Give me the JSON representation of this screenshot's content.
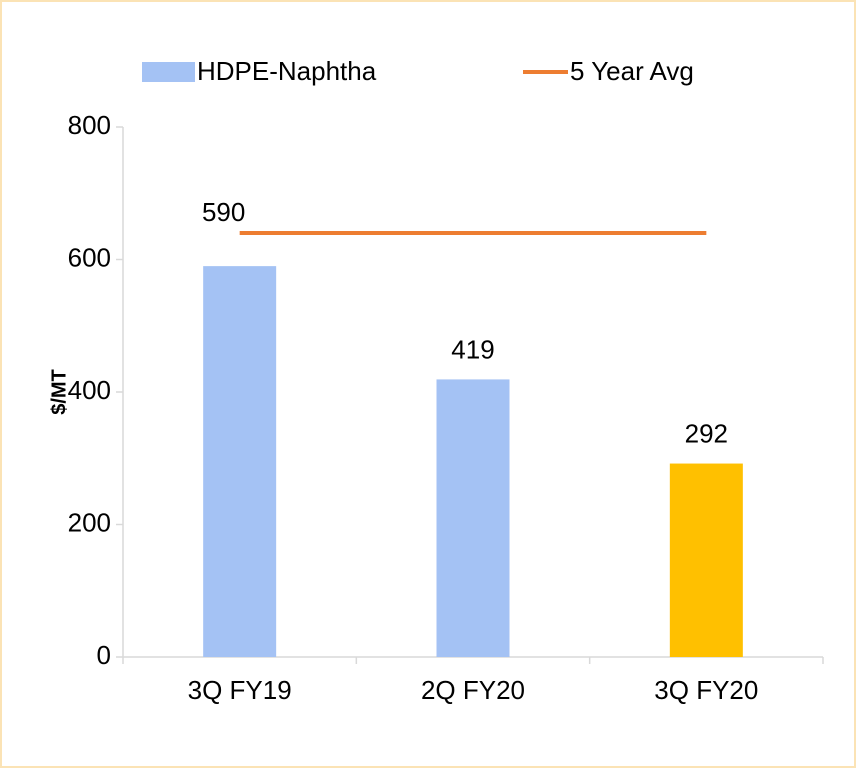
{
  "chart_data": {
    "type": "bar",
    "categories": [
      "3Q FY19",
      "2Q FY20",
      "3Q FY20"
    ],
    "series": [
      {
        "name": "HDPE-Naphtha",
        "type": "bar",
        "color": "#a4c2f4",
        "colors": [
          "#a4c2f4",
          "#a4c2f4",
          "#ffc000"
        ],
        "values": [
          590,
          419,
          292
        ]
      },
      {
        "name": "5 Year Avg",
        "type": "line",
        "color": "#ed7d31",
        "values": [
          640,
          640,
          640
        ]
      }
    ],
    "ylabel": "$/MT",
    "ylim": [
      0,
      800
    ],
    "yticks": [
      0,
      200,
      400,
      600,
      800
    ],
    "data_labels": true,
    "legend": "top"
  }
}
